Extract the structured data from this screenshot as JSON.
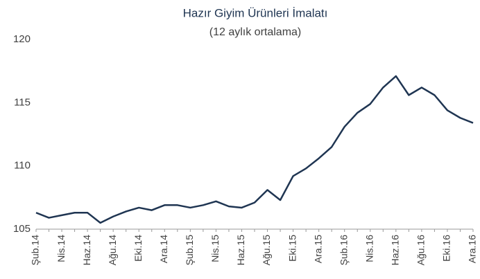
{
  "chart_data": {
    "type": "line",
    "title": "Hazır Giyim Ürünleri İmalatı",
    "subtitle": "(12 aylık ortalama)",
    "categories": [
      "Şub.14",
      null,
      "Nis.14",
      null,
      "Haz.14",
      null,
      "Ağu.14",
      null,
      "Eki.14",
      null,
      "Ara.14",
      null,
      "Şub.15",
      null,
      "Nis.15",
      null,
      "Haz.15",
      null,
      "Ağu.15",
      null,
      "Eki.15",
      null,
      "Ara.15",
      null,
      "Şub.16",
      null,
      "Nis.16",
      null,
      "Haz.16",
      null,
      "Ağu.16",
      null,
      "Eki.16",
      null,
      "Ara.16"
    ],
    "series": [
      {
        "name": "Hazır Giyim Ürünleri İmalatı",
        "color": "#1f3552",
        "values": [
          106.3,
          105.9,
          106.1,
          106.3,
          106.3,
          105.5,
          106.0,
          106.4,
          106.7,
          106.5,
          106.9,
          106.9,
          106.7,
          106.9,
          107.2,
          106.8,
          106.7,
          107.1,
          108.1,
          107.3,
          109.2,
          109.8,
          110.6,
          111.5,
          113.1,
          114.2,
          114.9,
          116.2,
          117.1,
          115.6,
          116.2,
          115.6,
          114.4,
          113.8,
          113.4
        ]
      }
    ],
    "ylim": [
      105,
      120
    ],
    "yticks": [
      105,
      110,
      115,
      120
    ],
    "grid": false
  }
}
